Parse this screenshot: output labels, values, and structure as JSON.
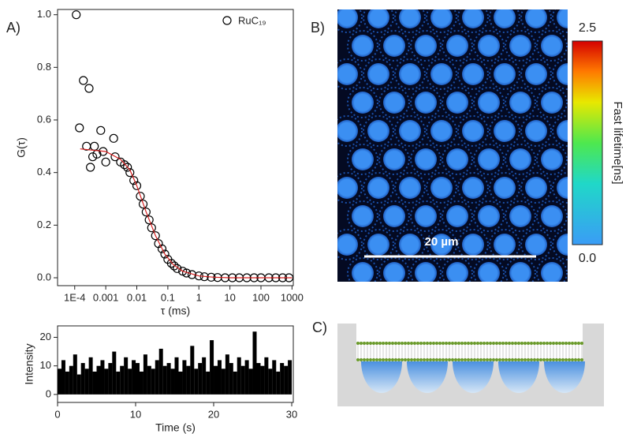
{
  "chart_data": [
    {
      "type": "scatter",
      "panel_label": "A)",
      "x_label": "τ (ms)",
      "y_label": "G(τ)",
      "xlog": true,
      "xlim": [
        2.8e-05,
        1100
      ],
      "ylim": [
        -0.03,
        1.02
      ],
      "xticks": [
        {
          "value": 0.0001,
          "label": "1E-4"
        },
        0.001,
        0.01,
        0.1,
        1,
        10,
        100,
        1000
      ],
      "yticks": [
        {
          "value": 0,
          "label": "0.0"
        },
        0.2,
        0.4,
        0.6,
        0.8,
        {
          "value": 1,
          "label": "1.0"
        }
      ],
      "series": [
        {
          "name": "RuC₁₉",
          "type": "scatter",
          "color": "#000000",
          "x": [
            0.000112,
            0.000142,
            0.00019,
            0.00024,
            0.00029,
            0.00032,
            0.00038,
            0.00043,
            0.00052,
            0.00069,
            0.00082,
            0.001,
            0.0018,
            0.002,
            0.003,
            0.004,
            0.005,
            0.006,
            0.008,
            0.01,
            0.013,
            0.016,
            0.02,
            0.025,
            0.03,
            0.04,
            0.05,
            0.065,
            0.08,
            0.1,
            0.13,
            0.16,
            0.2,
            0.3,
            0.4,
            0.6,
            1,
            1.5,
            2.5,
            4,
            7,
            12,
            20,
            35,
            60,
            100,
            180,
            300,
            500,
            800
          ],
          "values": [
            1.0,
            0.57,
            0.75,
            0.5,
            0.72,
            0.42,
            0.46,
            0.5,
            0.47,
            0.56,
            0.48,
            0.44,
            0.53,
            0.46,
            0.44,
            0.43,
            0.42,
            0.4,
            0.37,
            0.35,
            0.31,
            0.28,
            0.25,
            0.22,
            0.19,
            0.16,
            0.13,
            0.11,
            0.09,
            0.07,
            0.055,
            0.045,
            0.035,
            0.025,
            0.018,
            0.012,
            0.007,
            0.004,
            0.002,
            0.001,
            0,
            0,
            0,
            0,
            0,
            0,
            0,
            0,
            0,
            0
          ]
        },
        {
          "type": "line",
          "color": "#d62020",
          "x": [
            0.00015,
            0.001,
            0.003,
            0.006,
            0.01,
            0.02,
            0.04,
            0.08,
            0.15,
            0.3,
            1,
            3,
            10,
            1000
          ],
          "values": [
            0.49,
            0.48,
            0.45,
            0.41,
            0.35,
            0.25,
            0.16,
            0.09,
            0.05,
            0.025,
            0.007,
            0.002,
            0,
            0
          ]
        }
      ]
    },
    {
      "type": "bar",
      "x_label": "Time (s)",
      "y_label": "Intensity",
      "xlim": [
        0,
        30.2
      ],
      "ylim": [
        -2.8,
        24
      ],
      "xticks": [
        0,
        10,
        20,
        30
      ],
      "yticks": [
        0,
        10,
        20
      ],
      "color": "#000000",
      "x": [
        0,
        0.5,
        1,
        1.5,
        2,
        2.5,
        3,
        3.5,
        4,
        4.5,
        5,
        5.5,
        6,
        6.5,
        7,
        7.5,
        8,
        8.5,
        9,
        9.5,
        10,
        10.5,
        11,
        11.5,
        12,
        12.5,
        13,
        13.5,
        14,
        14.5,
        15,
        15.5,
        16,
        16.5,
        17,
        17.5,
        18,
        18.5,
        19,
        19.5,
        20,
        20.5,
        21,
        21.5,
        22,
        22.5,
        23,
        23.5,
        24,
        24.5,
        25,
        25.5,
        26,
        26.5,
        27,
        27.5,
        28,
        28.5,
        29,
        29.5
      ],
      "values": [
        9,
        12,
        8,
        10,
        14,
        7,
        11,
        9,
        13,
        8,
        10,
        12,
        9,
        11,
        15,
        8,
        10,
        13,
        9,
        12,
        11,
        8,
        14,
        10,
        9,
        12,
        16,
        10,
        11,
        9,
        13,
        8,
        12,
        10,
        17,
        9,
        11,
        13,
        8,
        19,
        10,
        12,
        9,
        14,
        11,
        8,
        13,
        10,
        12,
        9,
        22,
        11,
        10,
        13,
        9,
        12,
        8,
        11,
        10,
        12
      ]
    }
  ],
  "image": {
    "panel_label": "B)",
    "scale_bar": "20 µm",
    "colorbar": {
      "title": "Fast lifetime[ns]",
      "ticks": [
        {
          "value": 2.5,
          "label": "2.5"
        },
        {
          "value": 0,
          "label": "0.0"
        }
      ]
    }
  },
  "diagram": {
    "panel_label": "C)"
  }
}
